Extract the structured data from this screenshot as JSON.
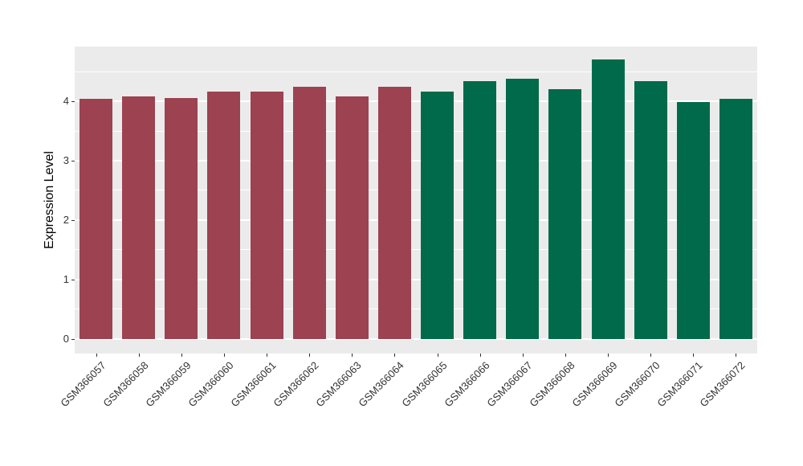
{
  "figure": {
    "background": "#FFFFFF",
    "panel_background": "#EBEBEB",
    "grid_color": "#FFFFFF",
    "axis_text_color": "#333333",
    "axis_title_color": "#000000",
    "tick_mark_color": "#333333"
  },
  "chart_data": {
    "type": "bar",
    "title": "",
    "xlabel": "",
    "ylabel": "Expression Level",
    "categories": [
      "GSM366057",
      "GSM366058",
      "GSM366059",
      "GSM366060",
      "GSM366061",
      "GSM366062",
      "GSM366063",
      "GSM366064",
      "GSM366065",
      "GSM366066",
      "GSM366067",
      "GSM366068",
      "GSM366069",
      "GSM366070",
      "GSM366071",
      "GSM366072"
    ],
    "values": [
      4.04,
      4.08,
      4.06,
      4.16,
      4.16,
      4.25,
      4.08,
      4.25,
      4.16,
      4.34,
      4.38,
      4.2,
      4.71,
      4.34,
      3.99,
      4.04
    ],
    "bar_colors": [
      "#9C4251",
      "#9C4251",
      "#9C4251",
      "#9C4251",
      "#9C4251",
      "#9C4251",
      "#9C4251",
      "#9C4251",
      "#016A4A",
      "#016A4A",
      "#016A4A",
      "#016A4A",
      "#016A4A",
      "#016A4A",
      "#016A4A",
      "#016A4A"
    ],
    "group_colors": {
      "group1": "#9C4251",
      "group2": "#016A4A"
    },
    "ylim": [
      -0.245,
      4.92
    ],
    "yticks": [
      0,
      1,
      2,
      3,
      4
    ],
    "ytick_labels": [
      "0",
      "1",
      "2",
      "3",
      "4"
    ],
    "minor_ticks": [
      0.5,
      1.5,
      2.5,
      3.5,
      4.5
    ],
    "grid": "major+minor",
    "legend": "none",
    "bar_width_fraction": 0.77,
    "x_label_rotation_deg": 45
  }
}
